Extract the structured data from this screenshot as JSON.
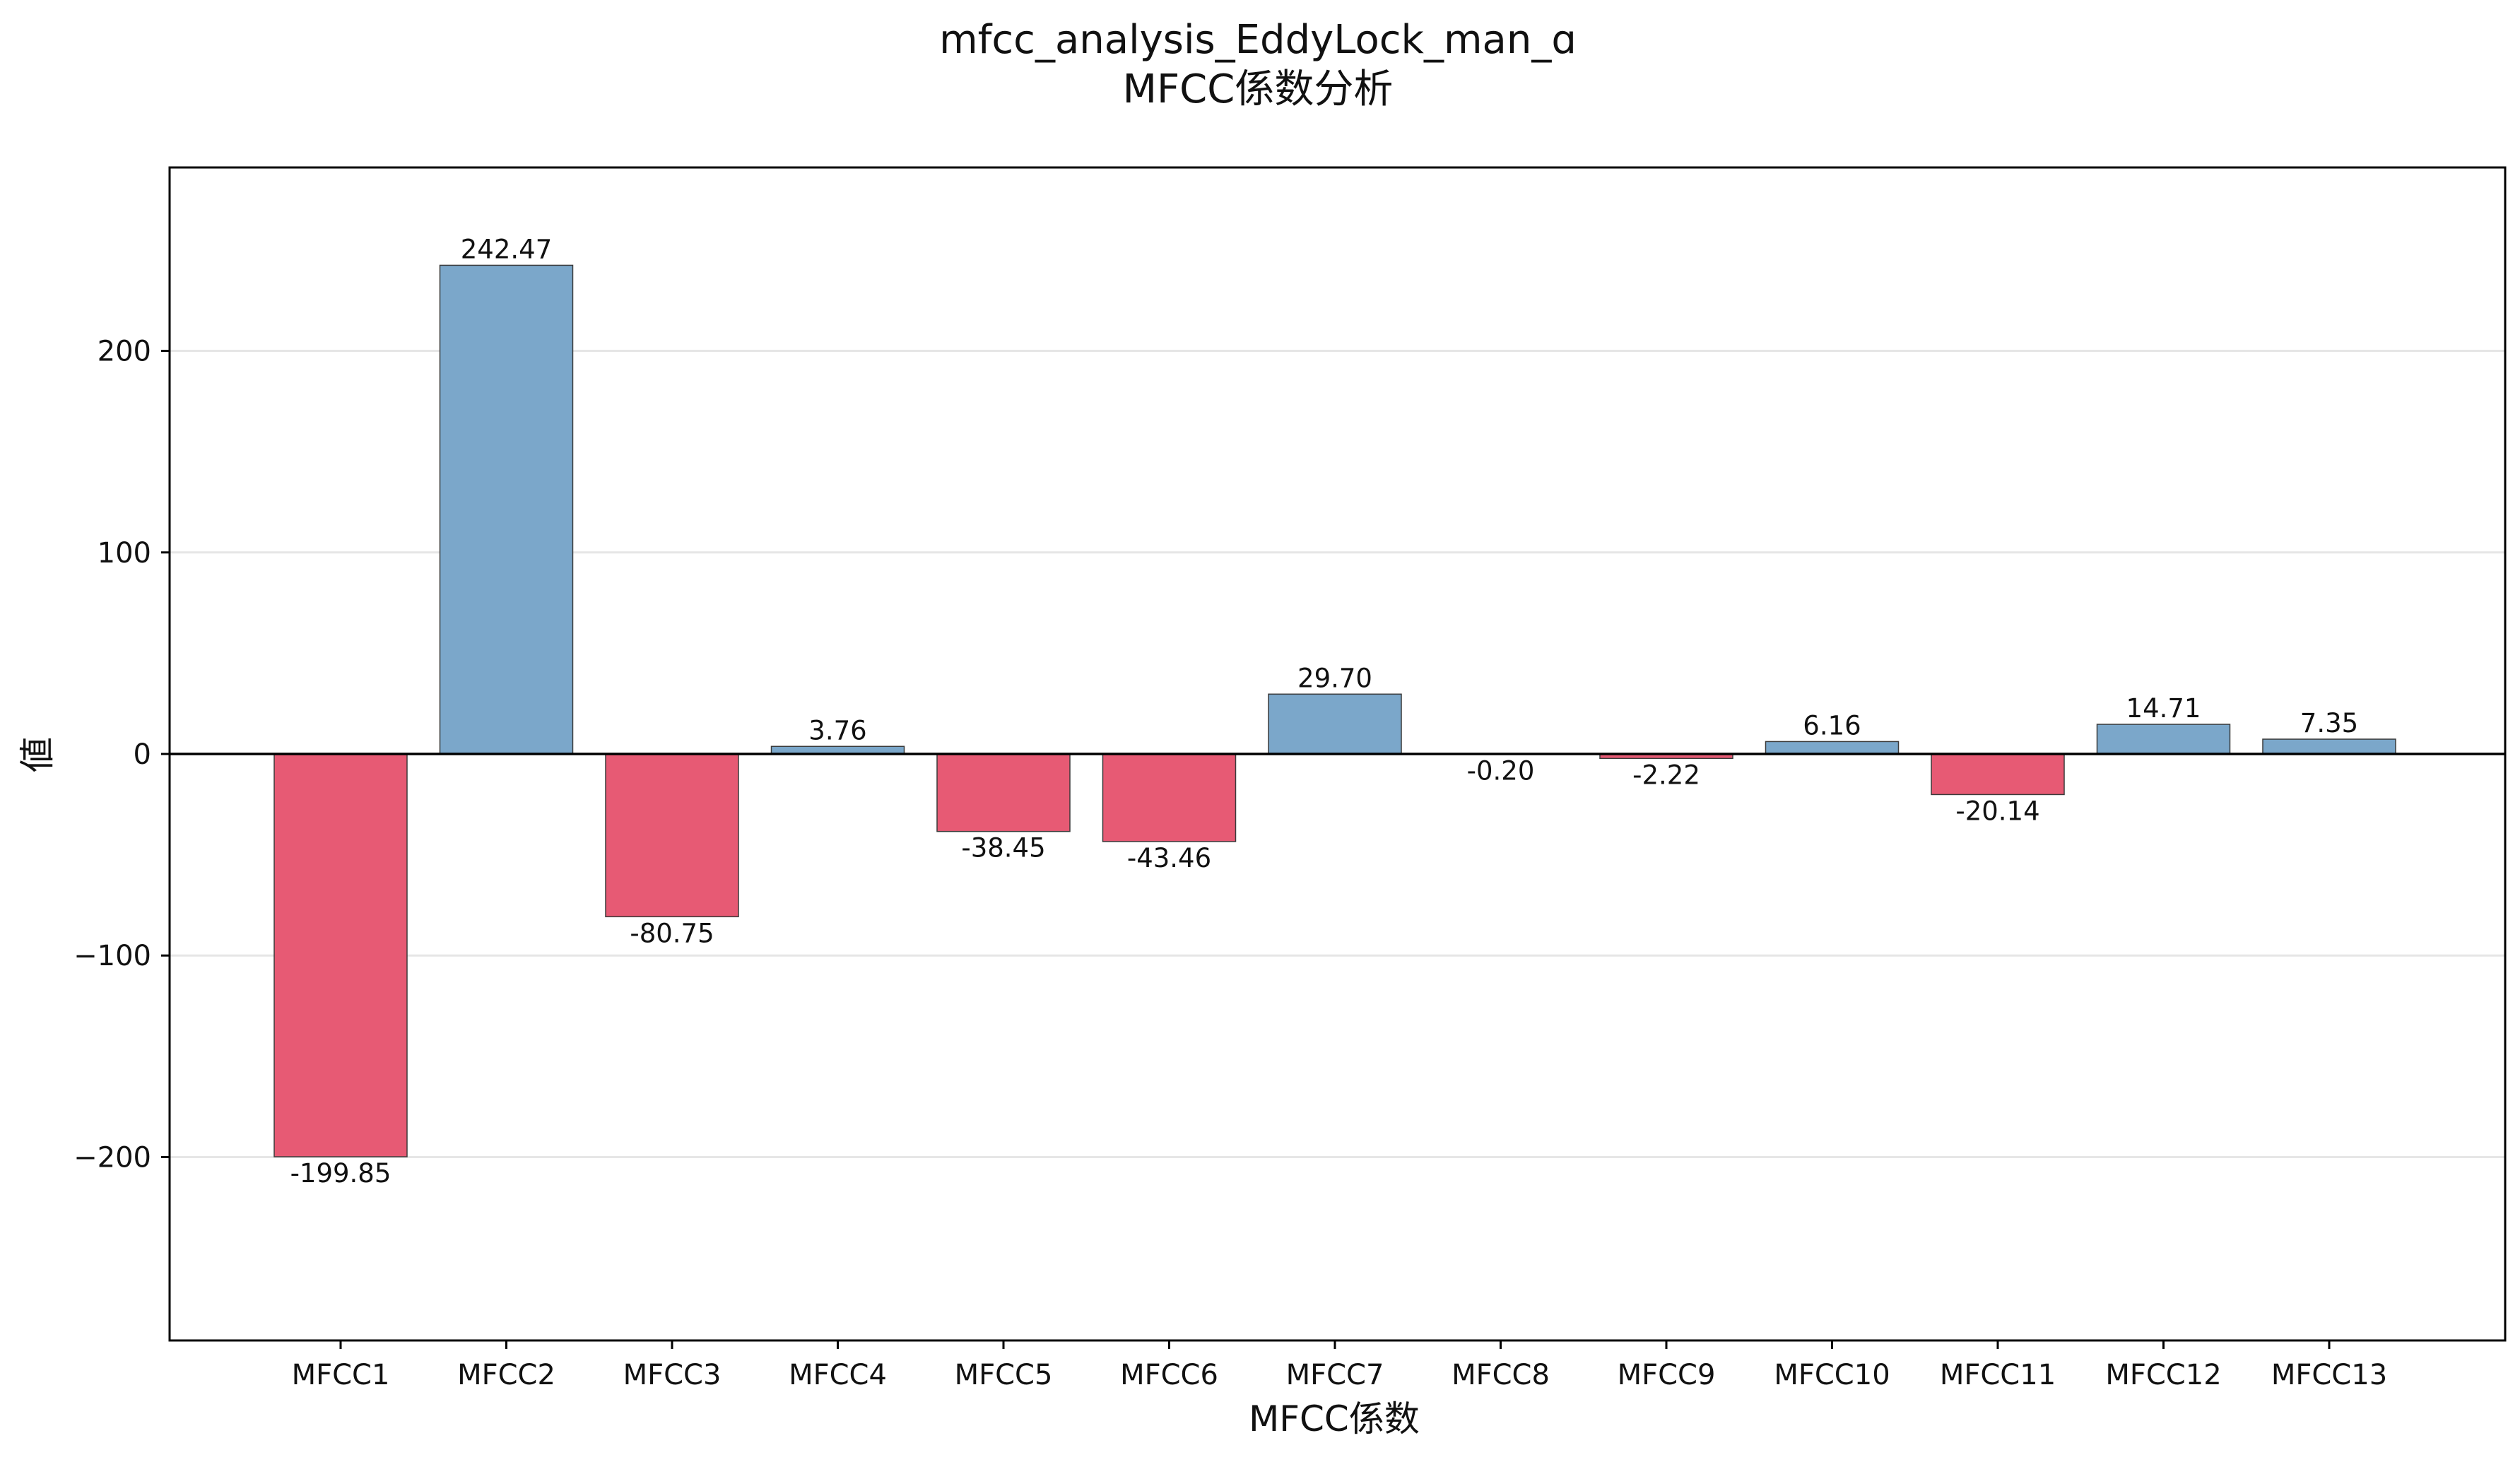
{
  "chart_data": {
    "type": "bar",
    "title": "mfcc_analysis_EddyLock_man_ɑ",
    "subtitle": "MFCC係数分析",
    "xlabel": "MFCC係数",
    "ylabel": "値",
    "categories": [
      "MFCC1",
      "MFCC2",
      "MFCC3",
      "MFCC4",
      "MFCC5",
      "MFCC6",
      "MFCC7",
      "MFCC8",
      "MFCC9",
      "MFCC10",
      "MFCC11",
      "MFCC12",
      "MFCC13"
    ],
    "values": [
      -199.85,
      242.47,
      -80.75,
      3.76,
      -38.45,
      -43.46,
      29.7,
      -0.2,
      -2.22,
      6.16,
      -20.14,
      14.71,
      7.35
    ],
    "value_labels": [
      "-199.85",
      "242.47",
      "-80.75",
      "3.76",
      "-38.45",
      "-43.46",
      "29.70",
      "-0.20",
      "-2.22",
      "6.16",
      "-20.14",
      "14.71",
      "7.35"
    ],
    "ylim": [
      -291,
      291
    ],
    "yticks": [
      -200,
      -100,
      0,
      100,
      200
    ],
    "ytick_labels": [
      "−200",
      "−100",
      "0",
      "100",
      "200"
    ],
    "grid": "horizontal",
    "legend": "none",
    "colors": {
      "positive": "#7ba7ca",
      "negative": "#e75a74",
      "edge": "#3a3a3a",
      "zero_line": "#000000",
      "grid": "#e6e6e6"
    }
  }
}
